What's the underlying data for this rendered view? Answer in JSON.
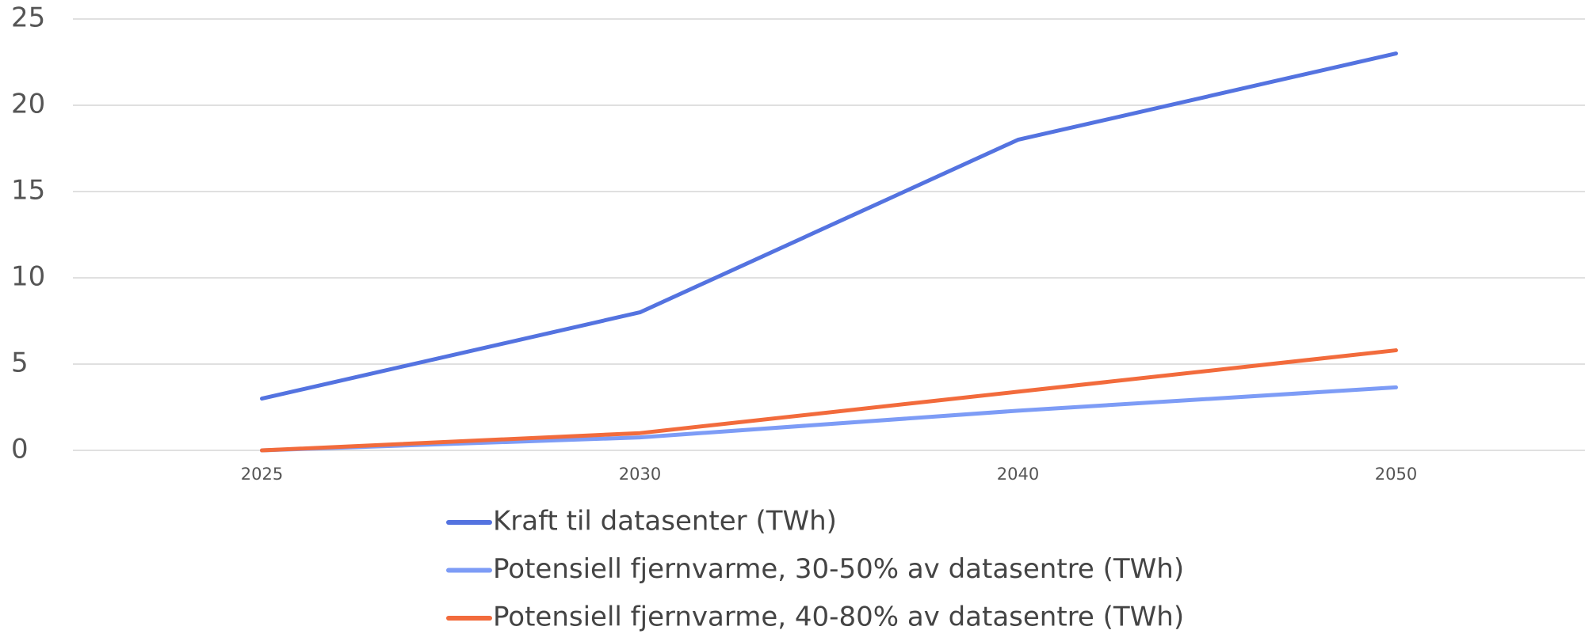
{
  "chart_data": {
    "type": "line",
    "categories": [
      "2025",
      "2030",
      "2040",
      "2050"
    ],
    "series": [
      {
        "name": "Kraft til datasenter (TWh)",
        "color": "#5473e0",
        "values": [
          3,
          8,
          18,
          23
        ]
      },
      {
        "name": "Potensiell fjernvarme, 30-50% av datasentre (TWh)",
        "color": "#7d9cf6",
        "values": [
          0,
          0.75,
          2.3,
          3.65
        ]
      },
      {
        "name": "Potensiell fjernvarme, 40-80% av datasentre (TWh)",
        "color": "#f26b3c",
        "values": [
          0,
          1.0,
          3.4,
          5.8
        ]
      }
    ],
    "ylim": [
      0,
      25
    ],
    "yticks": [
      0,
      5,
      10,
      15,
      20,
      25
    ],
    "grid": true,
    "legend": "bottom"
  }
}
